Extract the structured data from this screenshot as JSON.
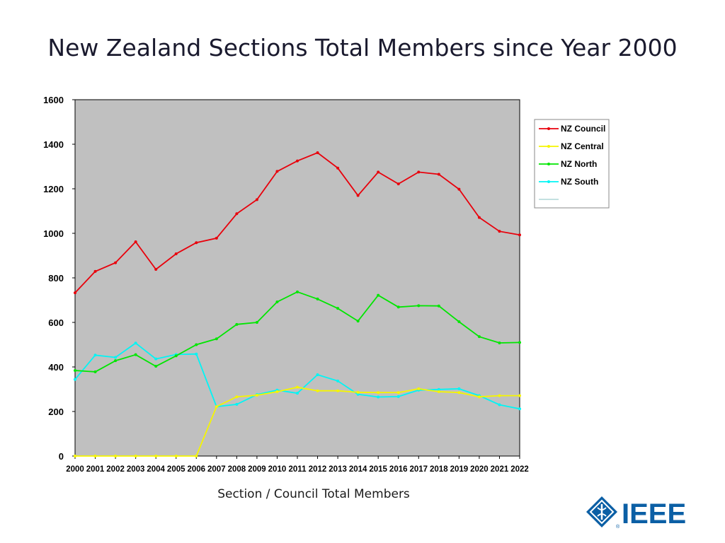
{
  "slide": {
    "title": "New Zealand Sections Total Members since Year 2000",
    "caption": "Section / Council Total Members",
    "logo_text": "IEEE"
  },
  "chart_data": {
    "type": "line",
    "title": "",
    "xlabel": "",
    "ylabel": "",
    "ylim": [
      0,
      1600
    ],
    "yticks": [
      0,
      200,
      400,
      600,
      800,
      1000,
      1200,
      1400,
      1600
    ],
    "x": [
      "2000",
      "2001",
      "2002",
      "2003",
      "2004",
      "2005",
      "2006",
      "2007",
      "2008",
      "2009",
      "2010",
      "2011",
      "2012",
      "2013",
      "2014",
      "2015",
      "2016",
      "2017",
      "2018",
      "2019",
      "2020",
      "2021",
      "2022"
    ],
    "grid": false,
    "plot_background": "#c0c0c0",
    "legend": "right",
    "series": [
      {
        "name": "NZ Council",
        "color": "#e8000b",
        "values": [
          733,
          829,
          868,
          962,
          838,
          908,
          958,
          978,
          1088,
          1151,
          1278,
          1325,
          1362,
          1293,
          1170,
          1275,
          1222,
          1275,
          1265,
          1198,
          1071,
          1009,
          993
        ]
      },
      {
        "name": "NZ Central",
        "color": "#f5f500",
        "values": [
          0,
          0,
          0,
          0,
          0,
          0,
          0,
          222,
          266,
          273,
          289,
          309,
          293,
          293,
          286,
          285,
          285,
          302,
          289,
          285,
          266,
          271,
          271
        ]
      },
      {
        "name": "NZ North",
        "color": "#00e600",
        "values": [
          384,
          378,
          428,
          455,
          403,
          450,
          500,
          526,
          591,
          600,
          692,
          737,
          705,
          663,
          606,
          722,
          669,
          675,
          674,
          603,
          536,
          508,
          510
        ]
      },
      {
        "name": "NZ South",
        "color": "#00f5f5",
        "values": [
          344,
          453,
          443,
          507,
          436,
          456,
          458,
          222,
          232,
          276,
          296,
          282,
          365,
          337,
          277,
          265,
          267,
          296,
          299,
          302,
          271,
          230,
          212
        ]
      }
    ]
  }
}
